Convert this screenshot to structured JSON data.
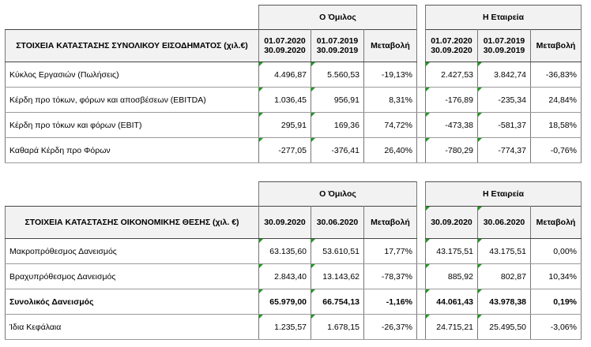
{
  "income": {
    "group_label": "Ο Όμιλος",
    "company_label": "Η Εταιρεία",
    "title": "ΣΤΟΙΧΕΙΑ ΚΑΤΑΣΤΑΣΗΣ ΣΥΝΟΛΙΚΟΥ ΕΙΣΟΔΗΜΑΤΟΣ (χιλ.€)",
    "cols": [
      {
        "l1": "01.07.2020",
        "l2": "30.09.2020"
      },
      {
        "l1": "01.07.2019",
        "l2": "30.09.2019"
      },
      {
        "l1": "Μεταβολή",
        "l2": ""
      },
      {
        "l1": "01.07.2020",
        "l2": "30.09.2020"
      },
      {
        "l1": "01.07.2019",
        "l2": "30.09.2019"
      },
      {
        "l1": "Μεταβολή",
        "l2": ""
      }
    ],
    "rows": [
      {
        "label": "Κύκλος Εργασιών (Πωλήσεις)",
        "v": [
          "4.496,87",
          "5.560,53",
          "-19,13%",
          "2.427,53",
          "3.842,74",
          "-36,83%"
        ]
      },
      {
        "label": "Κέρδη προ τόκων, φόρων και αποσβέσεων (EBITDA)",
        "v": [
          "1.036,45",
          "956,91",
          "8,31%",
          "-176,89",
          "-235,34",
          "24,84%"
        ]
      },
      {
        "label": "Κέρδη προ τόκων και φόρων (EBIT)",
        "v": [
          "295,91",
          "169,36",
          "74,72%",
          "-473,38",
          "-581,37",
          "18,58%"
        ]
      },
      {
        "label": "Καθαρά Κέρδη προ Φόρων",
        "v": [
          "-277,05",
          "-376,41",
          "26,40%",
          "-780,29",
          "-774,37",
          "-0,76%"
        ]
      }
    ]
  },
  "position": {
    "group_label": "Ο Όμιλος",
    "company_label": "Η Εταιρεία",
    "title": "ΣΤΟΙΧΕΙΑ ΚΑΤΑΣΤΑΣΗΣ ΟΙΚΟΝΟΜΙΚΗΣ ΘΕΣΗΣ (χιλ. €)",
    "cols": [
      "30.09.2020",
      "30.06.2020",
      "Μεταβολή",
      "30.09.2020",
      "30.06.2020",
      "Μεταβολή"
    ],
    "rows": [
      {
        "label": "Μακροπρόθεσμος Δανεισμός",
        "v": [
          "63.135,60",
          "53.610,51",
          "17,77%",
          "43.175,51",
          "43.175,51",
          "0,00%"
        ]
      },
      {
        "label": "Βραχυπρόθεσμος Δανεισμός",
        "v": [
          "2.843,40",
          "13.143,62",
          "-78,37%",
          "885,92",
          "802,87",
          "10,34%"
        ]
      },
      {
        "label": "Συνολικός Δανεισμός",
        "v": [
          "65.979,00",
          "66.754,13",
          "-1,16%",
          "44.061,43",
          "43.978,38",
          "0,19%"
        ]
      },
      {
        "label": "Ίδια Κεφάλαια",
        "v": [
          "1.235,57",
          "1.678,15",
          "-26,37%",
          "24.715,21",
          "25.495,50",
          "-3,06%"
        ]
      }
    ]
  }
}
